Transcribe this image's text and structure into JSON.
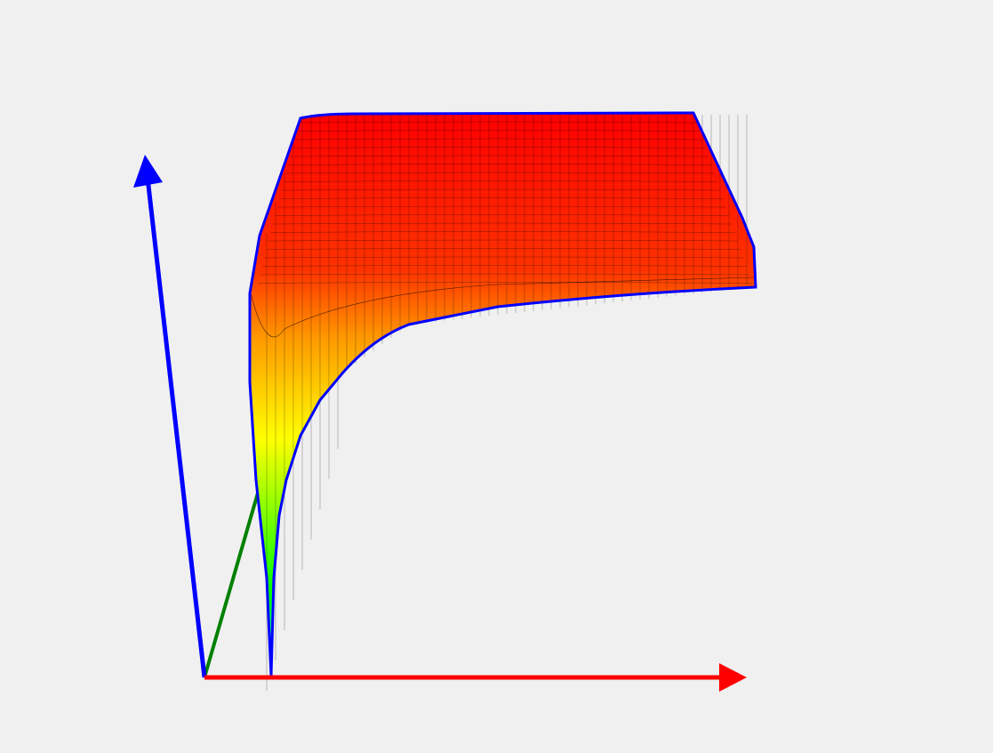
{
  "scene": {
    "background": "#f0f0f0",
    "axes": {
      "x": {
        "color": "#ff0000",
        "icon": "arrow-right-icon"
      },
      "y": {
        "color": "#008000",
        "icon": "axis-line"
      },
      "z": {
        "color": "#0000ff",
        "icon": "arrow-up-icon"
      }
    },
    "surface": {
      "colormap": [
        "#00ffff",
        "#00ff00",
        "#ffff00",
        "#ff8c00",
        "#ff0000"
      ],
      "edge_color": "#0000ff",
      "mesh_color": "#000000"
    }
  }
}
